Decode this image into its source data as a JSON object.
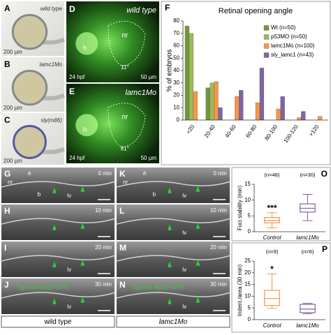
{
  "panels": [
    {
      "id": "A",
      "label": "wild type",
      "scale": "200 µm"
    },
    {
      "id": "B",
      "label": "lamc1Mo",
      "scale": "200 µm"
    },
    {
      "id": "C",
      "label": "sly(m86)",
      "scale": "200 µm"
    },
    {
      "id": "D",
      "label": "wild type",
      "h": "h",
      "nr": "nr",
      "angle": "11°",
      "stage": "24 hpf",
      "scale": "50 µm"
    },
    {
      "id": "E",
      "label": "lamc1Mo",
      "h": "h",
      "nr": "nr",
      "angle": "81°",
      "stage": "24 hpf",
      "scale": "50 µm"
    },
    {
      "id": "G",
      "time": "0 min",
      "nr": "nr",
      "a": "a",
      "b": "b",
      "lv": "lv"
    },
    {
      "id": "H",
      "time": "10 min"
    },
    {
      "id": "I",
      "time": "20 min",
      "lv": "lv"
    },
    {
      "id": "J",
      "time": "30 min",
      "transgene": "Tg(actin:Myl12-GFP)",
      "lv": "lv"
    },
    {
      "id": "K",
      "time": "0 min",
      "nr": "nr",
      "a": "a",
      "b": "b",
      "lv": "lv"
    },
    {
      "id": "L",
      "time": "10 min",
      "lv": "lv"
    },
    {
      "id": "M",
      "time": "20 min",
      "lv": "lv"
    },
    {
      "id": "N",
      "time": "30 min",
      "transgene": "Tg(actin:Myl12-GFP)",
      "lv": "lv"
    }
  ],
  "group_labels": [
    "wild type",
    "lamc1Mo"
  ],
  "chart_data": [
    {
      "type": "bar",
      "letter": "F",
      "title": "Retinal opening angle",
      "y_label": "% of embryos",
      "categories": [
        "<20",
        "20-40",
        "40-60",
        "60-80",
        "80-100",
        "100-120",
        ">120"
      ],
      "series": [
        {
          "name": "Wt (n=50)",
          "color": "#77933c",
          "values": [
            76,
            26,
            0,
            0,
            0,
            0,
            0
          ]
        },
        {
          "name": "p53MO (n=50)",
          "color": "#9bbb59",
          "values": [
            70,
            30,
            0,
            0,
            0,
            0,
            0
          ]
        },
        {
          "name": "lamc1Mo (n=100)",
          "color": "#f79646",
          "values": [
            23,
            31,
            19,
            14,
            9,
            2,
            3
          ]
        },
        {
          "name": "sly_lamc1 (n=43)",
          "color": "#8064a2",
          "values": [
            0,
            10,
            24,
            42,
            19,
            7,
            0
          ]
        }
      ],
      "ylim": [
        0,
        80
      ],
      "yticks": [
        0,
        10,
        20,
        30,
        40,
        50,
        60,
        70,
        80
      ],
      "legend": "upper right"
    },
    {
      "type": "box",
      "letter": "O",
      "y_label": "Foci stability (min)",
      "categories": [
        "Control",
        "lamc1Mo"
      ],
      "n_labels": [
        "(n=48)",
        "(n=30)"
      ],
      "colors": [
        "#f79646",
        "#8064a2"
      ],
      "boxes": [
        {
          "whislo": 1.2,
          "q1": 2.8,
          "med": 3.5,
          "q3": 4.5,
          "whishi": 6
        },
        {
          "whislo": 3.5,
          "q1": 6.2,
          "med": 7.4,
          "q3": 8.8,
          "whishi": 11.8
        }
      ],
      "annotation": "***",
      "ylim": [
        0,
        15
      ],
      "yticks": [
        0,
        5,
        10,
        15
      ]
    },
    {
      "type": "box",
      "letter": "P",
      "y_label": "Indent./area (30 min)",
      "categories": [
        "Control",
        "lamc1Mo"
      ],
      "n_labels": [
        "(n=9)",
        "(n=6)"
      ],
      "colors": [
        "#f79646",
        "#8064a2"
      ],
      "boxes": [
        {
          "whislo": 4.8,
          "q1": 6,
          "med": 9,
          "q3": 12.5,
          "whishi": 19.5
        },
        {
          "whislo": 2.5,
          "q1": 3,
          "med": 4.5,
          "q3": 6.5,
          "whishi": 7
        }
      ],
      "annotation": "*",
      "ylim": [
        0,
        25
      ],
      "yticks": [
        0,
        5,
        10,
        15,
        20,
        25
      ]
    }
  ]
}
